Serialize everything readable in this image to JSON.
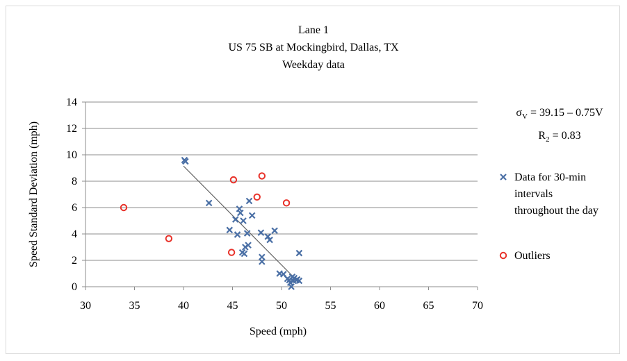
{
  "chart_data": {
    "type": "scatter",
    "title": [
      "Lane 1",
      "US 75 SB at Mockingbird, Dallas, TX",
      "Weekday data"
    ],
    "xlabel": "Speed (mph)",
    "ylabel": "Speed Standard Deviation (mph)",
    "xlim": [
      30,
      70
    ],
    "ylim": [
      0,
      14
    ],
    "xticks": [
      "30",
      "35",
      "40",
      "45",
      "50",
      "55",
      "60",
      "65",
      "70"
    ],
    "yticks": [
      "0",
      "2",
      "4",
      "6",
      "8",
      "10",
      "12",
      "14"
    ],
    "grid": true,
    "legend_position": "right",
    "series": [
      {
        "name": "Data for 30-min intervals throughout the day",
        "legend_lines": [
          "Data for 30-min",
          "intervals",
          "throughout the day"
        ],
        "marker": "x",
        "color": "#4a6fa5",
        "points": [
          [
            40.1,
            9.6
          ],
          [
            40.2,
            9.5
          ],
          [
            42.6,
            6.35
          ],
          [
            44.7,
            4.3
          ],
          [
            45.3,
            5.1
          ],
          [
            45.5,
            3.95
          ],
          [
            45.7,
            5.9
          ],
          [
            45.8,
            5.6
          ],
          [
            46.0,
            2.6
          ],
          [
            46.1,
            5.0
          ],
          [
            46.2,
            2.5
          ],
          [
            46.3,
            3.0
          ],
          [
            46.5,
            4.05
          ],
          [
            46.6,
            3.15
          ],
          [
            46.7,
            6.5
          ],
          [
            47.0,
            5.4
          ],
          [
            47.9,
            4.1
          ],
          [
            48.0,
            2.25
          ],
          [
            48.0,
            1.9
          ],
          [
            48.6,
            3.8
          ],
          [
            48.8,
            3.55
          ],
          [
            49.3,
            4.25
          ],
          [
            49.8,
            1.0
          ],
          [
            50.2,
            0.95
          ],
          [
            50.6,
            0.6
          ],
          [
            50.8,
            0.5
          ],
          [
            50.9,
            0.3
          ],
          [
            51.0,
            0.0
          ],
          [
            51.1,
            0.75
          ],
          [
            51.2,
            0.45
          ],
          [
            51.3,
            0.65
          ],
          [
            51.5,
            0.5
          ],
          [
            51.6,
            0.55
          ],
          [
            51.8,
            0.45
          ],
          [
            51.8,
            2.55
          ]
        ]
      },
      {
        "name": "Outliers",
        "marker": "o",
        "color": "#e8322a",
        "points": [
          [
            33.9,
            6.0
          ],
          [
            38.5,
            3.65
          ],
          [
            44.9,
            2.6
          ],
          [
            45.1,
            8.1
          ],
          [
            47.5,
            6.8
          ],
          [
            48.0,
            8.4
          ],
          [
            50.5,
            6.35
          ]
        ]
      }
    ],
    "trendline": {
      "x": [
        40,
        51.5
      ],
      "intercept": 39.15,
      "slope": -0.75,
      "color": "#666666"
    },
    "annotation": {
      "line1": "σV = 39.15 – 0.75V",
      "line2": "R2 = 0.83"
    }
  }
}
